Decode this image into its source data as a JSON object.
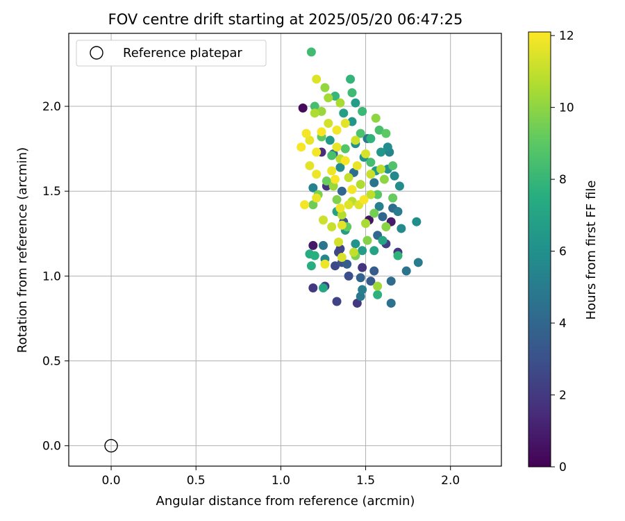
{
  "chart_data": {
    "type": "scatter",
    "title": "FOV centre drift starting at 2025/05/20 06:47:25",
    "xlabel": "Angular distance from reference (arcmin)",
    "ylabel": "Rotation from reference (arcmin)",
    "xlim": [
      -0.25,
      2.3
    ],
    "ylim": [
      -0.12,
      2.43
    ],
    "xticks": [
      "0.0",
      "0.5",
      "1.0",
      "1.5",
      "2.0"
    ],
    "yticks": [
      "0.0",
      "0.5",
      "1.0",
      "1.5",
      "2.0"
    ],
    "grid": true,
    "legend": {
      "position": "top-left",
      "entries": [
        "Reference platepar"
      ]
    },
    "reference_point": {
      "x": 0.0,
      "y": 0.0,
      "label": "Reference platepar"
    },
    "colorbar": {
      "label": "Hours from first FF file",
      "range": [
        0,
        12.1
      ],
      "ticks": [
        "0",
        "2",
        "4",
        "6",
        "8",
        "10",
        "12"
      ],
      "colormap": "viridis"
    },
    "series": [
      {
        "columns": [
          "x",
          "y",
          "hours"
        ],
        "points": [
          [
            1.13,
            1.99,
            0.3
          ],
          [
            1.19,
            1.18,
            0.8
          ],
          [
            1.52,
            1.33,
            0.6
          ],
          [
            1.65,
            1.32,
            0.9
          ],
          [
            1.19,
            0.93,
            2.0
          ],
          [
            1.26,
            0.94,
            2.1
          ],
          [
            1.33,
            0.85,
            2.4
          ],
          [
            1.45,
            0.84,
            2.0
          ],
          [
            1.32,
            1.06,
            2.6
          ],
          [
            1.34,
            1.14,
            2.7
          ],
          [
            1.35,
            1.16,
            2.5
          ],
          [
            1.48,
            1.05,
            1.8
          ],
          [
            1.4,
            1.0,
            2.9
          ],
          [
            1.62,
            1.19,
            2.2
          ],
          [
            1.69,
            1.14,
            1.9
          ],
          [
            1.24,
            1.73,
            1.5
          ],
          [
            1.27,
            1.53,
            1.8
          ],
          [
            1.36,
            1.08,
            3.0
          ],
          [
            1.39,
            1.07,
            3.6
          ],
          [
            1.47,
            0.99,
            3.8
          ],
          [
            1.53,
            0.97,
            3.4
          ],
          [
            1.55,
            1.03,
            3.5
          ],
          [
            1.65,
            0.97,
            4.2
          ],
          [
            1.74,
            1.03,
            4.6
          ],
          [
            1.81,
            1.08,
            5.0
          ],
          [
            1.47,
            0.88,
            4.9
          ],
          [
            1.48,
            0.92,
            5.1
          ],
          [
            1.65,
            0.84,
            4.5
          ],
          [
            1.6,
            1.35,
            3.9
          ],
          [
            1.37,
            1.32,
            3.2
          ],
          [
            1.58,
            1.41,
            5.2
          ],
          [
            1.57,
            1.24,
            4.1
          ],
          [
            1.25,
            1.18,
            4.7
          ],
          [
            1.26,
            1.1,
            5.5
          ],
          [
            1.19,
            1.52,
            5.3
          ],
          [
            1.31,
            1.72,
            4.3
          ],
          [
            1.36,
            1.5,
            4.0
          ],
          [
            1.43,
            1.61,
            4.4
          ],
          [
            1.51,
            1.81,
            4.8
          ],
          [
            1.55,
            1.55,
            4.6
          ],
          [
            1.64,
            1.73,
            5.4
          ],
          [
            1.67,
            1.59,
            5.6
          ],
          [
            1.7,
            1.53,
            5.8
          ],
          [
            1.71,
            1.28,
            5.7
          ],
          [
            1.8,
            1.32,
            5.9
          ],
          [
            1.66,
            1.4,
            4.2
          ],
          [
            1.69,
            1.38,
            5.0
          ],
          [
            1.63,
            1.63,
            6.1
          ],
          [
            1.59,
            1.73,
            6.3
          ],
          [
            1.63,
            1.76,
            5.9
          ],
          [
            1.56,
            1.62,
            6.5
          ],
          [
            1.49,
            1.7,
            6.2
          ],
          [
            1.44,
            1.78,
            6.0
          ],
          [
            1.35,
            1.64,
            5.8
          ],
          [
            1.42,
            1.91,
            6.3
          ],
          [
            1.37,
            1.96,
            6.8
          ],
          [
            1.44,
            2.02,
            6.6
          ],
          [
            1.29,
            1.8,
            6.4
          ],
          [
            1.33,
            1.38,
            6.9
          ],
          [
            1.38,
            1.27,
            6.7
          ],
          [
            1.44,
            1.19,
            6.1
          ],
          [
            1.48,
            1.15,
            6.6
          ],
          [
            1.55,
            1.15,
            7.0
          ],
          [
            1.6,
            1.21,
            7.1
          ],
          [
            1.25,
            0.93,
            7.2
          ],
          [
            1.17,
            1.13,
            7.4
          ],
          [
            1.18,
            1.06,
            7.5
          ],
          [
            1.2,
            1.12,
            7.6
          ],
          [
            1.57,
            0.89,
            7.7
          ],
          [
            1.69,
            1.12,
            7.8
          ],
          [
            1.41,
            2.16,
            7.9
          ],
          [
            1.18,
            2.32,
            8.3
          ],
          [
            1.2,
            2.0,
            8.4
          ],
          [
            1.32,
            2.06,
            8.0
          ],
          [
            1.42,
            2.08,
            8.2
          ],
          [
            1.48,
            1.97,
            8.1
          ],
          [
            1.53,
            1.81,
            7.8
          ],
          [
            1.58,
            1.86,
            8.5
          ],
          [
            1.62,
            1.84,
            9.0
          ],
          [
            1.66,
            1.65,
            8.7
          ],
          [
            1.66,
            1.46,
            9.2
          ],
          [
            1.57,
            1.48,
            8.9
          ],
          [
            1.53,
            1.67,
            8.4
          ],
          [
            1.47,
            1.84,
            8.6
          ],
          [
            1.38,
            1.75,
            8.8
          ],
          [
            1.3,
            1.71,
            8.5
          ],
          [
            1.24,
            1.82,
            9.1
          ],
          [
            1.19,
            1.42,
            9.4
          ],
          [
            1.22,
            1.48,
            9.6
          ],
          [
            1.27,
            1.56,
            9.3
          ],
          [
            1.33,
            1.45,
            9.7
          ],
          [
            1.39,
            1.29,
            9.1
          ],
          [
            1.44,
            1.12,
            9.6
          ],
          [
            1.51,
            1.21,
            9.8
          ],
          [
            1.55,
            1.37,
            9.5
          ],
          [
            1.62,
            1.29,
            9.9
          ],
          [
            1.61,
            1.57,
            10.0
          ],
          [
            1.56,
            1.93,
            10.0
          ],
          [
            1.57,
            0.94,
            10.3
          ],
          [
            1.24,
            1.97,
            10.2
          ],
          [
            1.26,
            2.11,
            10.1
          ],
          [
            1.28,
            2.05,
            10.4
          ],
          [
            1.35,
            2.02,
            10.5
          ],
          [
            1.2,
            1.96,
            10.6
          ],
          [
            1.31,
            1.53,
            10.2
          ],
          [
            1.36,
            1.36,
            10.7
          ],
          [
            1.42,
            1.44,
            10.8
          ],
          [
            1.47,
            1.54,
            10.6
          ],
          [
            1.53,
            1.48,
            10.9
          ],
          [
            1.59,
            1.63,
            10.8
          ],
          [
            1.5,
            1.31,
            10.5
          ],
          [
            1.4,
            1.58,
            11.0
          ],
          [
            1.35,
            1.69,
            10.9
          ],
          [
            1.25,
            1.33,
            11.2
          ],
          [
            1.3,
            1.29,
            11.1
          ],
          [
            1.34,
            1.2,
            11.3
          ],
          [
            1.36,
            1.11,
            11.4
          ],
          [
            1.43,
            1.14,
            11.0
          ],
          [
            1.21,
            2.16,
            11.5
          ],
          [
            1.28,
            1.9,
            11.3
          ],
          [
            1.44,
            1.8,
            11.2
          ],
          [
            1.5,
            1.72,
            11.4
          ],
          [
            1.53,
            1.6,
            11.1
          ],
          [
            1.46,
            1.42,
            11.5
          ],
          [
            1.17,
            1.8,
            11.7
          ],
          [
            1.15,
            1.84,
            11.9
          ],
          [
            1.12,
            1.76,
            12.0
          ],
          [
            1.17,
            1.65,
            11.6
          ],
          [
            1.21,
            1.6,
            11.8
          ],
          [
            1.21,
            1.73,
            11.9
          ],
          [
            1.24,
            1.85,
            12.0
          ],
          [
            1.3,
            1.62,
            11.8
          ],
          [
            1.33,
            1.86,
            11.9
          ],
          [
            1.33,
            1.76,
            11.7
          ],
          [
            1.38,
            1.9,
            11.6
          ],
          [
            1.38,
            1.68,
            12.0
          ],
          [
            1.42,
            1.51,
            11.9
          ],
          [
            1.35,
            1.4,
            11.8
          ],
          [
            1.32,
            1.57,
            12.0
          ],
          [
            1.45,
            1.65,
            11.7
          ],
          [
            1.49,
            1.45,
            12.0
          ],
          [
            1.14,
            1.42,
            11.9
          ],
          [
            1.21,
            1.46,
            11.7
          ],
          [
            1.26,
            1.07,
            11.8
          ],
          [
            1.4,
            1.42,
            11.5
          ],
          [
            1.36,
            1.3,
            11.6
          ]
        ]
      }
    ]
  }
}
